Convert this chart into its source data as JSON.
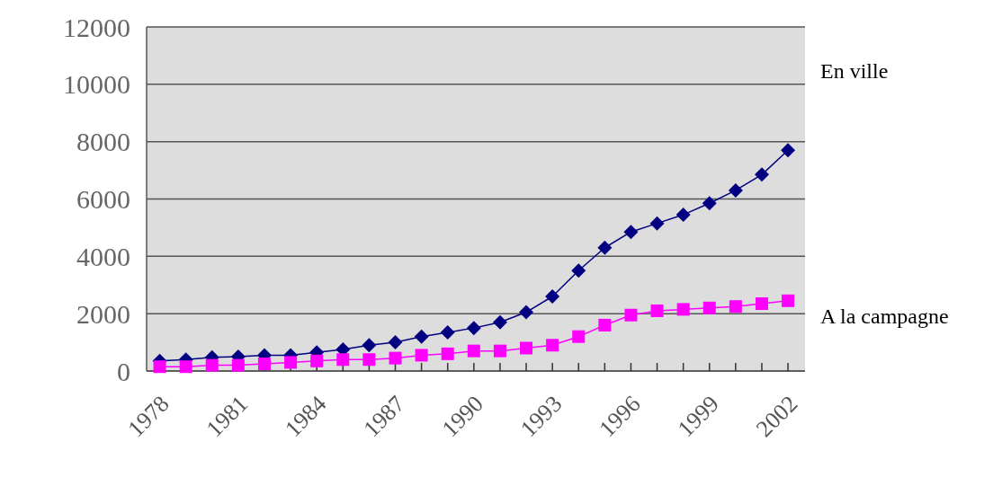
{
  "chart_data": {
    "type": "line",
    "x": [
      1978,
      1979,
      1980,
      1981,
      1982,
      1983,
      1984,
      1985,
      1986,
      1987,
      1988,
      1989,
      1990,
      1991,
      1992,
      1993,
      1994,
      1995,
      1996,
      1997,
      1998,
      1999,
      2000,
      2001,
      2002
    ],
    "series": [
      {
        "name": "En ville",
        "color": "#000080",
        "marker": "diamond",
        "values": [
          350,
          400,
          480,
          500,
          550,
          550,
          650,
          750,
          900,
          1000,
          1200,
          1350,
          1500,
          1700,
          2050,
          2600,
          3500,
          4300,
          4850,
          5150,
          5450,
          5850,
          6300,
          6850,
          7700
        ]
      },
      {
        "name": "A la campagne",
        "color": "#ff00ff",
        "marker": "square",
        "values": [
          150,
          150,
          200,
          200,
          250,
          300,
          350,
          400,
          400,
          450,
          550,
          600,
          700,
          700,
          800,
          900,
          1200,
          1600,
          1950,
          2100,
          2150,
          2200,
          2250,
          2350,
          2450
        ]
      }
    ],
    "xlim": [
      1977.5,
      2002.65
    ],
    "xticks": [
      1978,
      {
        "value": 1979,
        "label": null
      },
      {
        "value": 1980,
        "label": null
      },
      1981,
      {
        "value": 1982,
        "label": null
      },
      {
        "value": 1983,
        "label": null
      },
      1984,
      {
        "value": 1985,
        "label": null
      },
      {
        "value": 1986,
        "label": null
      },
      1987,
      {
        "value": 1988,
        "label": null
      },
      {
        "value": 1989,
        "label": null
      },
      1990,
      {
        "value": 1991,
        "label": null
      },
      {
        "value": 1992,
        "label": null
      },
      1993,
      {
        "value": 1994,
        "label": null
      },
      {
        "value": 1995,
        "label": null
      },
      1996,
      {
        "value": 1997,
        "label": null
      },
      {
        "value": 1998,
        "label": null
      },
      1999,
      {
        "value": 2000,
        "label": null
      },
      {
        "value": 2001,
        "label": null
      },
      2002
    ],
    "ylim": [
      0,
      12000
    ],
    "yticks": [
      0,
      2000,
      4000,
      6000,
      8000,
      10000,
      12000
    ],
    "grid": "y"
  }
}
